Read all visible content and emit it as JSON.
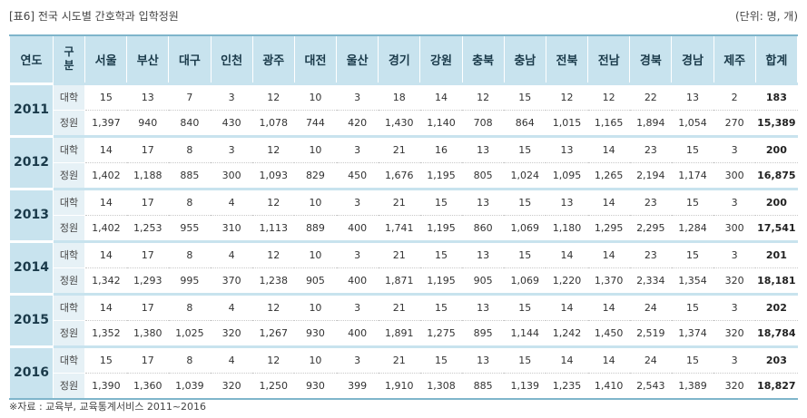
{
  "caption": "[표6] 전국 시도별 간호학과 입학정원",
  "unit": "(단위: 명, 개)",
  "headers": {
    "year": "연도",
    "gubun_top": "구",
    "gubun_bottom": "분",
    "regions": [
      "서울",
      "부산",
      "대구",
      "인천",
      "광주",
      "대전",
      "울산",
      "경기",
      "강원",
      "충북",
      "충남",
      "전북",
      "전남",
      "경북",
      "경남",
      "제주",
      "합계"
    ]
  },
  "row_labels": {
    "schools": "대학",
    "quota": "정원"
  },
  "years": [
    {
      "year": "2011",
      "schools": [
        "15",
        "13",
        "7",
        "3",
        "12",
        "10",
        "3",
        "18",
        "14",
        "12",
        "15",
        "12",
        "12",
        "22",
        "13",
        "2",
        "183"
      ],
      "quota": [
        "1,397",
        "940",
        "840",
        "430",
        "1,078",
        "744",
        "420",
        "1,430",
        "1,140",
        "708",
        "864",
        "1,015",
        "1,165",
        "1,894",
        "1,054",
        "270",
        "15,389"
      ]
    },
    {
      "year": "2012",
      "schools": [
        "14",
        "17",
        "8",
        "3",
        "12",
        "10",
        "3",
        "21",
        "16",
        "13",
        "15",
        "13",
        "14",
        "23",
        "15",
        "3",
        "200"
      ],
      "quota": [
        "1,402",
        "1,188",
        "885",
        "300",
        "1,093",
        "829",
        "450",
        "1,676",
        "1,195",
        "805",
        "1,024",
        "1,095",
        "1,265",
        "2,194",
        "1,174",
        "300",
        "16,875"
      ]
    },
    {
      "year": "2013",
      "schools": [
        "14",
        "17",
        "8",
        "4",
        "12",
        "10",
        "3",
        "21",
        "15",
        "13",
        "15",
        "13",
        "14",
        "23",
        "15",
        "3",
        "200"
      ],
      "quota": [
        "1,402",
        "1,253",
        "955",
        "310",
        "1,113",
        "889",
        "400",
        "1,741",
        "1,195",
        "860",
        "1,069",
        "1,180",
        "1,295",
        "2,295",
        "1,284",
        "300",
        "17,541"
      ]
    },
    {
      "year": "2014",
      "schools": [
        "14",
        "17",
        "8",
        "4",
        "12",
        "10",
        "3",
        "21",
        "15",
        "13",
        "15",
        "14",
        "14",
        "23",
        "15",
        "3",
        "201"
      ],
      "quota": [
        "1,342",
        "1,293",
        "995",
        "370",
        "1,238",
        "905",
        "400",
        "1,871",
        "1,195",
        "905",
        "1,069",
        "1,220",
        "1,370",
        "2,334",
        "1,354",
        "320",
        "18,181"
      ]
    },
    {
      "year": "2015",
      "schools": [
        "14",
        "17",
        "8",
        "4",
        "12",
        "10",
        "3",
        "21",
        "15",
        "13",
        "15",
        "14",
        "14",
        "24",
        "15",
        "3",
        "202"
      ],
      "quota": [
        "1,352",
        "1,380",
        "1,025",
        "320",
        "1,267",
        "930",
        "400",
        "1,891",
        "1,275",
        "895",
        "1,144",
        "1,242",
        "1,450",
        "2,519",
        "1,374",
        "320",
        "18,784"
      ]
    },
    {
      "year": "2016",
      "schools": [
        "15",
        "17",
        "8",
        "4",
        "12",
        "10",
        "3",
        "21",
        "15",
        "13",
        "15",
        "14",
        "14",
        "24",
        "15",
        "3",
        "203"
      ],
      "quota": [
        "1,390",
        "1,360",
        "1,039",
        "320",
        "1,250",
        "930",
        "399",
        "1,910",
        "1,308",
        "885",
        "1,139",
        "1,235",
        "1,410",
        "2,543",
        "1,389",
        "320",
        "18,827"
      ]
    }
  ],
  "source": "※자료 : 교육부, 교육통계서비스 2011~2016"
}
